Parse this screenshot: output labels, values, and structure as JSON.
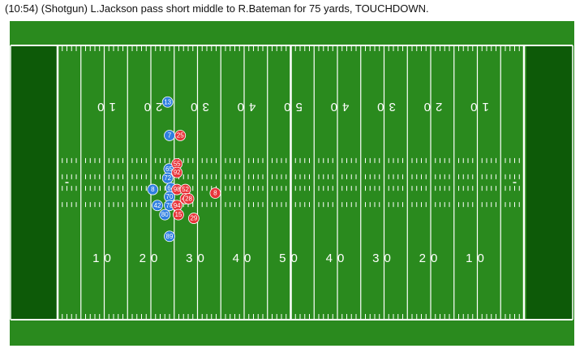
{
  "play": {
    "description": "(10:54) (Shotgun) L.Jackson pass short middle to R.Bateman for 75 yards, TOUCHDOWN."
  },
  "field": {
    "colors": {
      "grass": "#2a8a1e",
      "endzone": "#0d5a08",
      "lines": "#ffffff",
      "offense": "#2f7fe0",
      "defense": "#e8343a"
    },
    "yard_numbers_top": [
      "10",
      "20",
      "30",
      "40",
      "50",
      "40",
      "30",
      "20",
      "10"
    ],
    "yard_numbers_bottom": [
      "10",
      "20",
      "30",
      "40",
      "50",
      "40",
      "30",
      "20",
      "10"
    ]
  },
  "players": {
    "offense": [
      {
        "number": "13",
        "yard": 23.6,
        "lateral": 11.0
      },
      {
        "number": "7",
        "yard": 24.0,
        "lateral": 17.5
      },
      {
        "number": "65",
        "yard": 23.9,
        "lateral": 24.0
      },
      {
        "number": "72",
        "yard": 23.6,
        "lateral": 25.8
      },
      {
        "number": "64",
        "yard": 24.3,
        "lateral": 27.7
      },
      {
        "number": "8",
        "yard": 20.4,
        "lateral": 28.0
      },
      {
        "number": "70",
        "yard": 24.0,
        "lateral": 29.4
      },
      {
        "number": "42",
        "yard": 21.4,
        "lateral": 31.1
      },
      {
        "number": "78",
        "yard": 24.0,
        "lateral": 31.1
      },
      {
        "number": "80",
        "yard": 23.0,
        "lateral": 32.9
      },
      {
        "number": "89",
        "yard": 24.0,
        "lateral": 37.1
      }
    ],
    "defense": [
      {
        "number": "25",
        "yard": 26.3,
        "lateral": 17.5
      },
      {
        "number": "55",
        "yard": 25.6,
        "lateral": 23.0
      },
      {
        "number": "92",
        "yard": 25.6,
        "lateral": 24.7
      },
      {
        "number": "98",
        "yard": 25.6,
        "lateral": 28.0
      },
      {
        "number": "52",
        "yard": 27.4,
        "lateral": 28.0
      },
      {
        "number": "8",
        "yard": 33.8,
        "lateral": 28.7
      },
      {
        "number": "42",
        "yard": 27.4,
        "lateral": 29.8
      },
      {
        "number": "28",
        "yard": 28.1,
        "lateral": 29.8
      },
      {
        "number": "94",
        "yard": 25.6,
        "lateral": 31.1
      },
      {
        "number": "15",
        "yard": 25.9,
        "lateral": 32.9
      },
      {
        "number": "29",
        "yard": 29.2,
        "lateral": 33.6
      }
    ]
  }
}
